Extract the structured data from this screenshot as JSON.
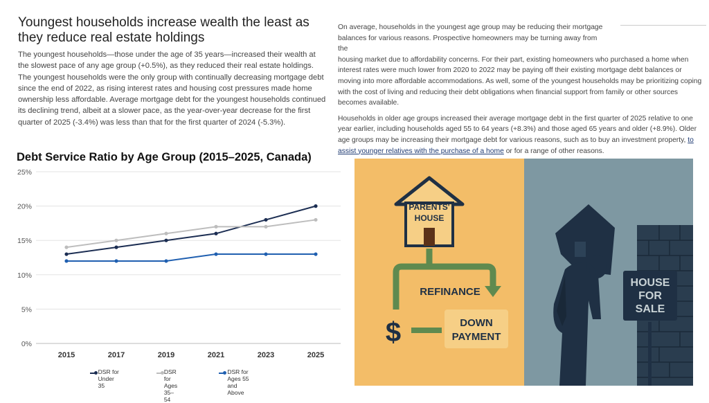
{
  "article": {
    "headline": "Youngest households increase wealth the least as they reduce real estate holdings",
    "left_paragraph": "The youngest households—those under the age of 35 years—increased their wealth at the slowest pace of any age group (+0.5%), as they reduced their real estate holdings. The youngest households were the only group with continually decreasing mortgage debt since the end of 2022, as rising interest rates and housing cost pressures made home ownership less affordable. Average mortgage debt for the youngest households continued its declining trend, albeit at a slower pace, as the year-over-year decrease for the first quarter of 2025 (-3.4%) was less than that for the first quarter of 2024 (-5.3%).",
    "right_paragraph_1a": "On average, households in the youngest age group may be reducing their mortgage balances for various reasons. Prospective homeowners may be turning away from the",
    "right_paragraph_1b": "housing market due to affordability concerns. For their part, existing homeowners who purchased a home when interest rates were much lower from 2020 to 2022 may be paying off their existing mortgage debt balances or moving into more affordable accommodations. As well, some of the youngest households may be prioritizing coping with the cost of living and reducing their debt obligations when financial support from family or other sources becomes available.",
    "right_paragraph_2a": "Households in older age groups increased their average mortgage debt in the first quarter of 2025 relative to one year earlier, including households aged 55 to 64 years (+8.3%) and those aged 65 years and older (+8.9%). Older age groups may be increasing their mortgage debt for various reasons, such as to buy an investment property,",
    "right_paragraph_2_link": "to assist younger relatives with the purchase of a home",
    "right_paragraph_2b": "or for a range of other reasons."
  },
  "chart_data": {
    "type": "line",
    "title": "Debt Service Ratio by Age Group (2015–2025, Canada)",
    "xlabel": "",
    "ylabel": "",
    "x": [
      2015,
      2017,
      2019,
      2021,
      2023,
      2025
    ],
    "x_tick_labels": [
      "2015",
      "2017",
      "2019",
      "2021",
      "2023",
      "2025"
    ],
    "ylim": [
      0,
      25
    ],
    "y_ticks": [
      0,
      5,
      10,
      15,
      20,
      25
    ],
    "y_tick_labels": [
      "0%",
      "5%",
      "10%",
      "15%",
      "20%",
      "25%"
    ],
    "grid": "horizontal",
    "legend_position": "bottom",
    "series": [
      {
        "name": "DSR for Under 35",
        "color": "#1b2d52",
        "values": [
          13,
          14,
          15,
          16,
          18,
          20
        ]
      },
      {
        "name": "DSR for Ages 35–54",
        "color": "#bdbdbd",
        "values": [
          14,
          15,
          16,
          17,
          17,
          18
        ]
      },
      {
        "name": "DSR for Ages 55 and Above",
        "color": "#1f5fb0",
        "values": [
          12,
          12,
          12,
          13,
          13,
          13
        ]
      }
    ]
  },
  "legend": {
    "items": [
      {
        "line1": "DSR for Under 35",
        "line2": ""
      },
      {
        "line1": "DSR for Ages 35–",
        "line2": "54"
      },
      {
        "line1": "DSR for Ages 55",
        "line2": "and Above"
      }
    ]
  },
  "illustration": {
    "house_label_1": "PARENTS'",
    "house_label_2": "HOUSE",
    "refinance": "REFINANCE",
    "dollar": "$",
    "down_1": "DOWN",
    "down_2": "PAYMENT",
    "sign_1": "HOUSE",
    "sign_2": "FOR",
    "sign_3": "SALE",
    "colors": {
      "left_bg": "#f3bd68",
      "right_bg": "#7e98a2",
      "arrow": "#5f8a4f",
      "navy": "#1f3044",
      "box": "#f6cf86"
    }
  }
}
